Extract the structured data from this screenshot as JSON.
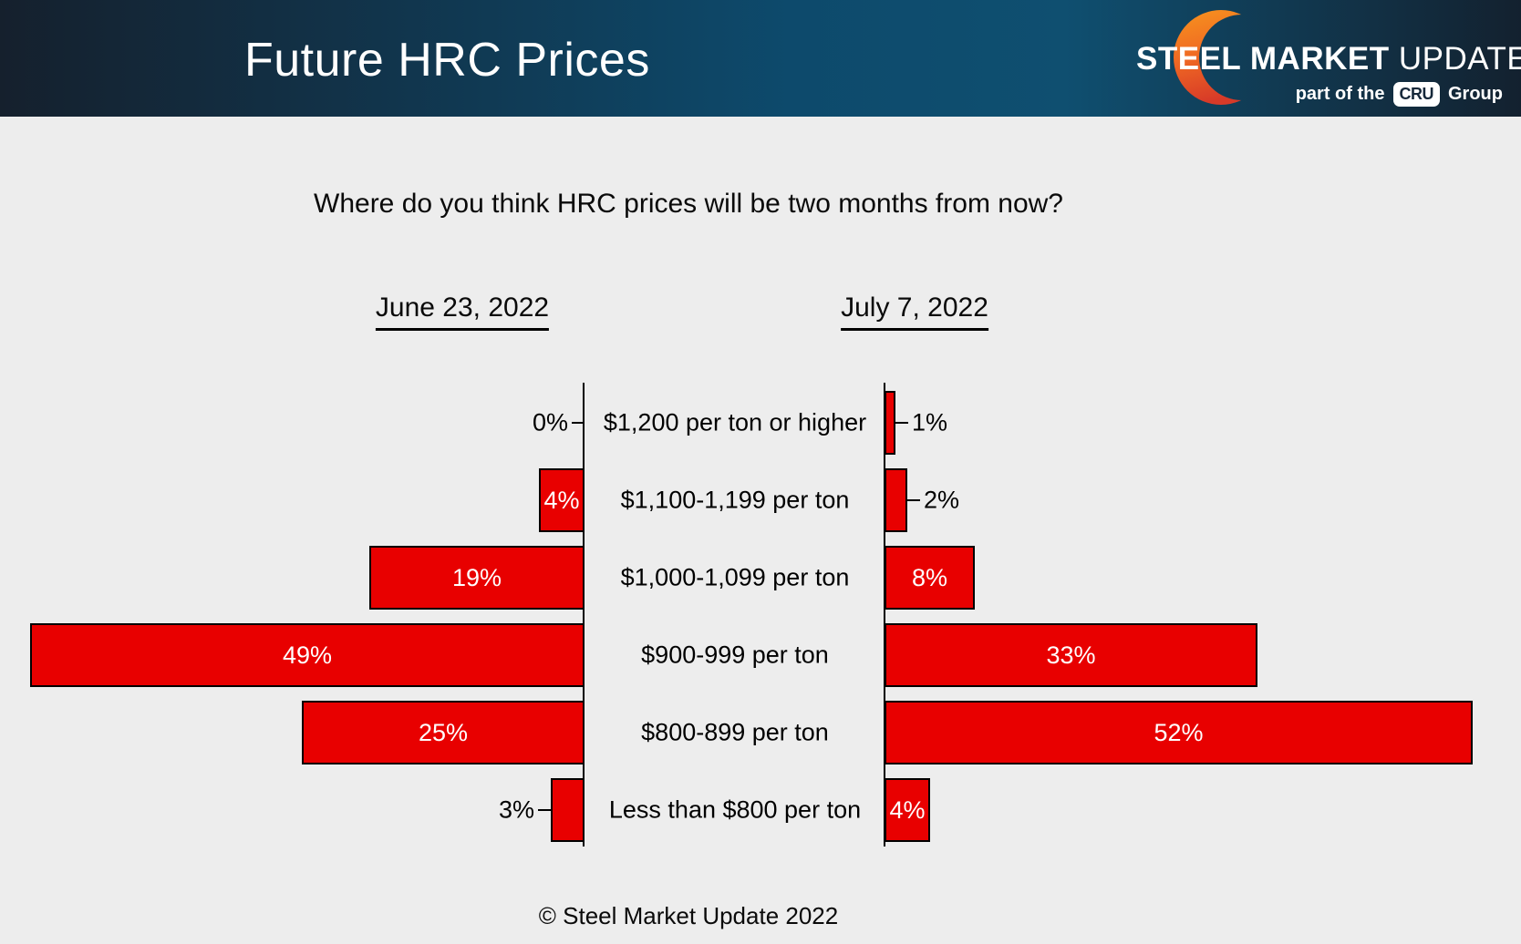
{
  "header": {
    "title": "Future HRC Prices",
    "logo": {
      "brand_bold": "STEEL MARKET",
      "brand_light": "UPDATE",
      "tagline_prefix": "part of the",
      "tagline_badge": "CRU",
      "tagline_suffix": "Group"
    }
  },
  "question": "Where do you think HRC prices will be two months from now?",
  "footer": "© Steel Market Update 2022",
  "chart_data": {
    "type": "bar",
    "subtype": "tornado",
    "title": "Where do you think HRC prices will be two months from now?",
    "categories": [
      "$1,200 per ton or higher",
      "$1,100-1,199 per ton",
      "$1,000-1,099 per ton",
      "$900-999 per ton",
      "$800-899 per ton",
      "Less than $800 per ton"
    ],
    "series": [
      {
        "name": "June 23, 2022",
        "side": "left",
        "values": [
          0,
          4,
          19,
          49,
          25,
          3
        ]
      },
      {
        "name": "July 7, 2022",
        "side": "right",
        "values": [
          1,
          2,
          8,
          33,
          52,
          4
        ]
      }
    ],
    "value_suffix": "%",
    "xlim": [
      0,
      55
    ],
    "bar_color": "#e80000",
    "bar_border_color": "#000000",
    "axis_color": "#000000",
    "inside_label_color": "#ffffff",
    "outside_label_color": "#000000",
    "grid": false,
    "legend_position": "column-headers"
  }
}
